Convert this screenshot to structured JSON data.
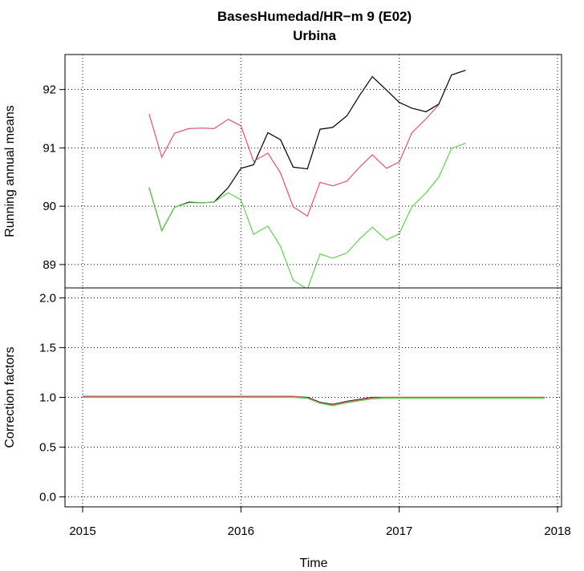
{
  "chart_data": {
    "title": "BasesHumedad/HR−m   9 (E02)",
    "subtitle": "Urbina",
    "xlabel": "Time",
    "x_ticks": [
      "2015",
      "2016",
      "2017",
      "2018"
    ],
    "xlim": [
      2015,
      2018
    ],
    "grid": true,
    "panels": [
      {
        "type": "line",
        "ylabel": "Running annual means",
        "ylim": [
          88.6,
          92.6
        ],
        "y_ticks": [
          89,
          90,
          91,
          92
        ],
        "y_tick_labels": [
          "89",
          "90",
          "91",
          "92"
        ],
        "series": [
          {
            "color": "#000000",
            "x": [
              2015.42,
              2015.5,
              2015.58,
              2015.67,
              2015.75,
              2015.83,
              2015.92,
              2016.0,
              2016.08,
              2016.17,
              2016.25,
              2016.33,
              2016.42,
              2016.5,
              2016.58,
              2016.67,
              2016.75,
              2016.83,
              2016.92,
              2017.0,
              2017.08,
              2017.17,
              2017.25,
              2017.33,
              2017.42
            ],
            "values": [
              90.32,
              89.58,
              89.98,
              90.07,
              90.06,
              90.07,
              90.32,
              90.65,
              90.71,
              91.26,
              91.14,
              90.67,
              90.64,
              91.32,
              91.35,
              91.55,
              91.9,
              92.22,
              91.99,
              91.78,
              91.68,
              91.62,
              91.75,
              92.25,
              92.33
            ]
          },
          {
            "color": "#DF536B",
            "x": [
              2015.42,
              2015.5,
              2015.58,
              2015.67,
              2015.75,
              2015.83,
              2015.92,
              2016.0,
              2016.08,
              2016.17,
              2016.25,
              2016.33,
              2016.42,
              2016.5,
              2016.58,
              2016.67,
              2016.75,
              2016.83,
              2016.92,
              2017.0,
              2017.08,
              2017.17,
              2017.25
            ],
            "values": [
              91.58,
              90.84,
              91.25,
              91.33,
              91.34,
              91.33,
              91.49,
              91.38,
              90.77,
              90.91,
              90.57,
              89.99,
              89.83,
              90.41,
              90.35,
              90.43,
              90.67,
              90.88,
              90.65,
              90.76,
              91.26,
              91.5,
              91.74
            ]
          },
          {
            "color": "#61D04F",
            "x": [
              2015.42,
              2015.5,
              2015.58,
              2015.67,
              2015.75,
              2015.83,
              2015.92,
              2016.0,
              2016.08,
              2016.17,
              2016.25,
              2016.33,
              2016.42,
              2016.5,
              2016.58,
              2016.67,
              2016.75,
              2016.83,
              2016.92,
              2017.0,
              2017.08,
              2017.17,
              2017.25,
              2017.33,
              2017.42
            ],
            "values": [
              90.32,
              89.58,
              89.98,
              90.06,
              90.06,
              90.07,
              90.23,
              90.11,
              89.52,
              89.66,
              89.31,
              88.73,
              88.58,
              89.18,
              89.11,
              89.2,
              89.44,
              89.64,
              89.42,
              89.53,
              89.99,
              90.23,
              90.5,
              90.99,
              91.08
            ]
          }
        ]
      },
      {
        "type": "line",
        "ylabel": "Correction factors",
        "ylim": [
          -0.1,
          2.1
        ],
        "y_ticks": [
          0,
          0.5,
          1,
          1.5,
          2
        ],
        "y_tick_labels": [
          "0.0",
          "0.5",
          "1.0",
          "1.5",
          "2.0"
        ],
        "series": [
          {
            "color": "#000000",
            "x": [
              2015.0,
              2016.33,
              2016.42,
              2016.5,
              2016.58,
              2016.67,
              2016.75,
              2016.83,
              2016.92,
              2017.92
            ],
            "values": [
              1.01,
              1.01,
              1.0,
              0.95,
              0.93,
              0.96,
              0.98,
              1.0,
              1.0,
              1.0
            ]
          },
          {
            "color": "#DF536B",
            "x": [
              2015.0,
              2016.33,
              2016.42,
              2016.5,
              2016.58,
              2016.67,
              2016.75,
              2016.83,
              2016.92,
              2017.92
            ],
            "values": [
              1.01,
              1.01,
              0.995,
              0.945,
              0.925,
              0.955,
              0.975,
              0.995,
              1.0,
              1.0
            ]
          },
          {
            "color": "#61D04F",
            "x": [
              2015.0,
              2016.33,
              2016.42,
              2016.5,
              2016.58,
              2016.67,
              2016.75,
              2016.83,
              2016.92,
              2017.92
            ],
            "values": [
              1.0,
              1.0,
              0.99,
              0.94,
              0.915,
              0.945,
              0.965,
              0.985,
              0.99,
              0.99
            ]
          }
        ]
      }
    ]
  }
}
